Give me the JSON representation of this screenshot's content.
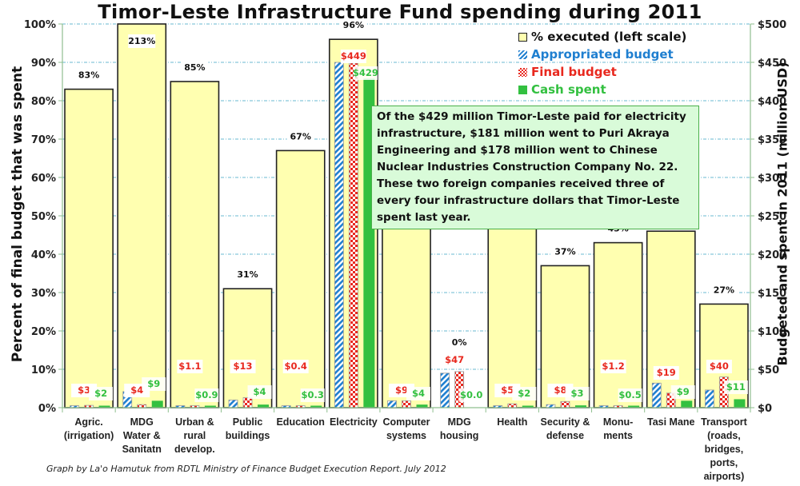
{
  "chart_data": {
    "type": "bar",
    "title": "Timor-Leste Infrastructure Fund spending during 2011",
    "ylabel_left": "Percent of final budget that was spent",
    "ylabel_right": "Budgeted and spent in 2011 (million USD)",
    "ylim_left": [
      0,
      100
    ],
    "ylim_right": [
      0,
      500
    ],
    "yticks_left": [
      "0%",
      "10%",
      "20%",
      "30%",
      "40%",
      "50%",
      "60%",
      "70%",
      "80%",
      "90%",
      "100%"
    ],
    "yticks_right": [
      "$0",
      "$50",
      "$100",
      "$150",
      "$200",
      "$250",
      "$300",
      "$350",
      "$400",
      "$450",
      "$500"
    ],
    "grid": true,
    "legend_position": "top-right",
    "categories": [
      "Agric.\n(irrigation)",
      "MDG\nWater &\nSanitatn",
      "Urban &\nrural\ndevelop.",
      "Public\nbuildings",
      "Education",
      "Electricity",
      "Computer\nsystems",
      "MDG\nhousing",
      "Health",
      "Security &\ndefense",
      "Monu-\nments",
      "Tasi Mane",
      "Transport\n(roads,\nbridges,\nports,\nairports)"
    ],
    "series": [
      {
        "name": "% executed (left scale)",
        "axis": "left",
        "color": "#ffffb0",
        "values": [
          83,
          213,
          85,
          31,
          67,
          96,
          47,
          0,
          47,
          37,
          43,
          46,
          27
        ],
        "labels": [
          "83%",
          "213%",
          "85%",
          "31%",
          "67%",
          "96%",
          "47%",
          "0%",
          "47%",
          "37%",
          "43%",
          "46%",
          "27%"
        ]
      },
      {
        "name": "Appropriated budget",
        "axis": "right",
        "color": "#1f7fd0",
        "values": [
          1,
          21,
          1,
          10,
          1,
          450,
          9,
          45,
          1,
          4,
          1,
          32,
          23
        ],
        "labels": []
      },
      {
        "name": "Final budget",
        "axis": "right",
        "color": "#e8281e",
        "values": [
          3,
          4,
          1.1,
          13,
          0.4,
          449,
          9,
          47,
          5,
          8,
          1.2,
          19,
          40
        ],
        "labels": [
          "$3",
          "$4",
          "$1.1",
          "$13",
          "$0.4",
          "$449",
          "$9",
          "$47",
          "$5",
          "$8",
          "$1.2",
          "$19",
          "$40"
        ]
      },
      {
        "name": "Cash spent",
        "axis": "right",
        "color": "#33c040",
        "values": [
          2,
          9,
          0.9,
          4,
          0.3,
          429,
          4,
          0.0,
          2,
          3,
          0.5,
          9,
          11
        ],
        "labels": [
          "$2",
          "$9",
          "$0.9",
          "$4",
          "$0.3",
          "$429",
          "$4",
          "$0.0",
          "$2",
          "$3",
          "$0.5",
          "$9",
          "$11"
        ]
      }
    ],
    "annotation": "Of the $429 million Timor-Leste paid for electricity infrastructure, $181 million went to Puri Akraya Engineering and $178 million went to Chinese Nuclear Industries Construction Company  No. 22.  These two foreign companies received three of every four infrastructure dollars that Timor-Leste spent last year.",
    "footer": "Graph by La'o Hamutuk from RDTL Ministry of Finance Budget Execution Report. July 2012"
  }
}
